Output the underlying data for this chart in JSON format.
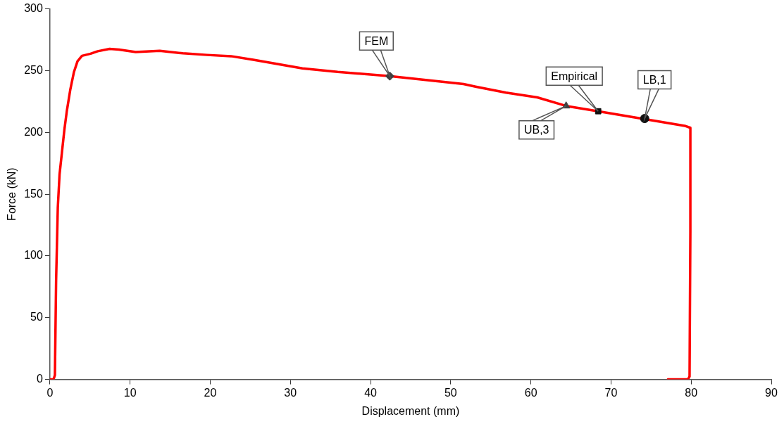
{
  "chart_data": {
    "type": "line",
    "xlabel": "Displacement (mm)",
    "ylabel": "Force (kN)",
    "xlim": [
      0,
      90
    ],
    "xticks": [
      0,
      10,
      20,
      30,
      40,
      50,
      60,
      70,
      80,
      90
    ],
    "ylim": [
      0,
      300
    ],
    "yticks": [
      0,
      50,
      100,
      150,
      200,
      250,
      300
    ],
    "grid": false,
    "legend": false,
    "line_style": "solid",
    "marker": "none",
    "series": [
      {
        "color": "#ff0000",
        "x": [
          0,
          0.45,
          0.62,
          0.77,
          0.98,
          1.2,
          1.5,
          1.8,
          2.1,
          2.55,
          3.0,
          3.44,
          4.0,
          5.07,
          5.96,
          7.44,
          8.6,
          10.7,
          13.7,
          16.6,
          19.6,
          22.6,
          25.5,
          31.5,
          35.9,
          42.4,
          51.6,
          53.1,
          56.9,
          60.8,
          64.4,
          68.4,
          79.2,
          79.9,
          79.9,
          79.8,
          79.6,
          77.1
        ],
        "values": [
          0,
          0,
          3.5,
          80,
          139,
          166,
          184,
          202,
          217,
          235,
          249,
          257.6,
          262,
          263.7,
          265.7,
          267.6,
          267,
          265,
          266,
          264,
          262.7,
          261.7,
          258.7,
          251.8,
          248.9,
          245.6,
          239.1,
          237,
          232.2,
          228.3,
          221.4,
          217.1,
          205.3,
          203.7,
          119,
          2.4,
          0,
          0
        ]
      },
      {
        "type": "scatter",
        "marker": "diamond",
        "color": "#404040",
        "x": [
          42.4
        ],
        "values": [
          245.6
        ]
      },
      {
        "type": "scatter",
        "marker": "square",
        "color": "#111111",
        "x": [
          68.4
        ],
        "values": [
          217.1
        ]
      },
      {
        "type": "scatter",
        "marker": "triangle",
        "color": "#404040",
        "x": [
          64.4
        ],
        "values": [
          221.4
        ]
      },
      {
        "type": "scatter",
        "marker": "circle",
        "color": "#111111",
        "x": [
          74.2
        ],
        "values": [
          211.2
        ]
      }
    ],
    "annotations": [
      {
        "text": "FEM",
        "x": 42.4,
        "y": 245.6
      },
      {
        "text": "Empirical",
        "x": 68.4,
        "y": 217.1
      },
      {
        "text": "LB,1",
        "x": 74.2,
        "y": 211.2
      },
      {
        "text": "UB,3",
        "x": 64.4,
        "y": 221.4
      }
    ]
  }
}
